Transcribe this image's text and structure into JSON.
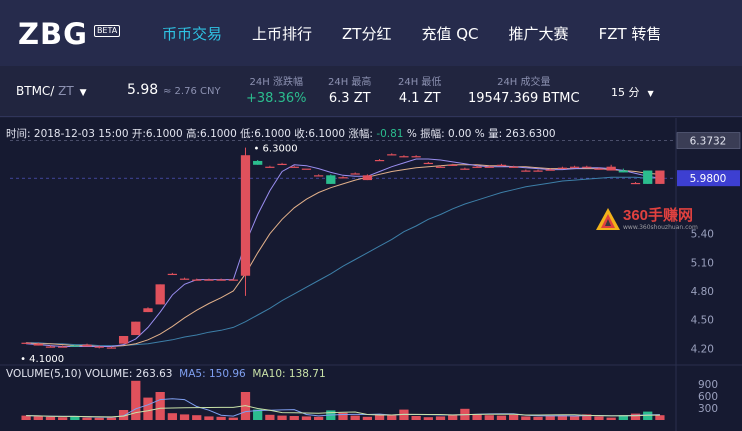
{
  "brand": {
    "logo": "ZBG",
    "badge": "BETA"
  },
  "nav": [
    {
      "label": "币币交易",
      "active": true
    },
    {
      "label": "上币排行",
      "active": false
    },
    {
      "label": "ZT分红",
      "active": false
    },
    {
      "label": "充值 QC",
      "active": false
    },
    {
      "label": "推广大赛",
      "active": false
    },
    {
      "label": "FZT 转售",
      "active": false
    }
  ],
  "ticker": {
    "base": "BTMC/",
    "quote": "ZT",
    "price": "5.98",
    "cny": "≈ 2.76 CNY",
    "stats": [
      {
        "label": "24H 涨跌幅",
        "value": "+38.36%",
        "positive": true
      },
      {
        "label": "24H 最高",
        "value": "6.3 ZT"
      },
      {
        "label": "24H 最低",
        "value": "4.1 ZT"
      },
      {
        "label": "24H 成交量",
        "value": "19547.369 BTMC"
      }
    ],
    "interval": "15 分"
  },
  "ohlc": {
    "time_label": "时间:",
    "time": "2018-12-03 15:00",
    "open_label": "开:",
    "open": "6.1000",
    "high_label": "高:",
    "high": "6.1000",
    "low_label": "低:",
    "low": "6.1000",
    "close_label": "收:",
    "close": "6.1000",
    "change_label": "涨幅:",
    "change": "-0.81",
    "change_unit": "%",
    "amp_label": "振幅:",
    "amp": "0.00 %",
    "vol_label": "量:",
    "vol": "263.6300"
  },
  "volume_info": {
    "title": "VOLUME(5,10)",
    "volume": "VOLUME: 263.63",
    "ma5": "MA5: 150.96",
    "ma10": "MA10: 138.71"
  },
  "watermark": {
    "text": "360手赚网",
    "url": "www.360shouzhuan.com"
  },
  "colors": {
    "up": "#2bbd8e",
    "down": "#e0515c",
    "accent": "#2fc4e4",
    "price_tag": "#3d3fd1"
  },
  "chart_data": {
    "type": "candlestick",
    "y_ticks": [
      "5.40",
      "5.10",
      "4.80",
      "4.50",
      "4.20"
    ],
    "volume_ticks": [
      "900",
      "600",
      "300"
    ],
    "current_price": "5.9800",
    "high_marker": "6.3732",
    "annotations": {
      "max": "6.3000",
      "min": "4.1000"
    },
    "ylim": [
      4.1,
      6.4
    ],
    "candles": [
      [
        4.26,
        4.25,
        4.26,
        4.25,
        "down"
      ],
      [
        4.25,
        4.23,
        4.26,
        4.23,
        "down"
      ],
      [
        4.22,
        4.22,
        4.23,
        4.21,
        "down"
      ],
      [
        4.22,
        4.22,
        4.23,
        4.22,
        "down"
      ],
      [
        4.22,
        4.23,
        4.24,
        4.22,
        "up"
      ],
      [
        4.24,
        4.22,
        4.25,
        4.22,
        "down"
      ],
      [
        4.22,
        4.21,
        4.23,
        4.2,
        "down"
      ],
      [
        4.21,
        4.21,
        4.22,
        4.2,
        "down"
      ],
      [
        4.25,
        4.33,
        4.33,
        4.25,
        "down"
      ],
      [
        4.34,
        4.48,
        4.48,
        4.34,
        "down"
      ],
      [
        4.58,
        4.62,
        4.63,
        4.58,
        "down"
      ],
      [
        4.66,
        4.87,
        4.87,
        4.66,
        "down"
      ],
      [
        4.98,
        4.98,
        4.99,
        4.97,
        "down"
      ],
      [
        4.93,
        4.93,
        4.94,
        4.92,
        "down"
      ],
      [
        4.92,
        4.92,
        4.93,
        4.91,
        "down"
      ],
      [
        4.92,
        4.92,
        4.93,
        4.91,
        "down"
      ],
      [
        4.92,
        4.92,
        4.93,
        4.91,
        "down"
      ],
      [
        4.92,
        4.92,
        4.93,
        4.91,
        "down"
      ],
      [
        4.96,
        6.22,
        6.3,
        4.75,
        "down"
      ],
      [
        6.12,
        6.16,
        6.17,
        6.12,
        "up"
      ],
      [
        6.1,
        6.1,
        6.11,
        6.1,
        "down"
      ],
      [
        6.13,
        6.13,
        6.14,
        6.13,
        "down"
      ],
      [
        6.1,
        6.1,
        6.11,
        6.1,
        "down"
      ],
      [
        6.08,
        6.08,
        6.08,
        6.08,
        "down"
      ],
      [
        6.01,
        6.01,
        6.02,
        6.01,
        "down"
      ],
      [
        6.01,
        5.92,
        6.02,
        5.92,
        "up"
      ],
      [
        5.99,
        5.99,
        6.0,
        5.98,
        "down"
      ],
      [
        6.03,
        6.03,
        6.04,
        6.02,
        "down"
      ],
      [
        6.01,
        5.96,
        6.02,
        5.96,
        "down"
      ],
      [
        6.17,
        6.17,
        6.18,
        6.16,
        "down"
      ],
      [
        6.23,
        6.23,
        6.24,
        6.22,
        "down"
      ],
      [
        6.21,
        6.21,
        6.22,
        6.2,
        "down"
      ],
      [
        6.21,
        6.21,
        6.22,
        6.2,
        "down"
      ],
      [
        6.14,
        6.14,
        6.15,
        6.13,
        "down"
      ],
      [
        6.1,
        6.1,
        6.11,
        6.1,
        "down"
      ],
      [
        6.12,
        6.12,
        6.13,
        6.11,
        "down"
      ],
      [
        6.08,
        6.08,
        6.09,
        6.07,
        "down"
      ],
      [
        6.1,
        6.1,
        6.11,
        6.09,
        "down"
      ],
      [
        6.1,
        6.1,
        6.11,
        6.09,
        "down"
      ],
      [
        6.12,
        6.12,
        6.13,
        6.11,
        "down"
      ],
      [
        6.1,
        6.1,
        6.11,
        6.09,
        "down"
      ],
      [
        6.06,
        6.06,
        6.07,
        6.05,
        "down"
      ],
      [
        6.06,
        6.06,
        6.07,
        6.05,
        "down"
      ],
      [
        6.07,
        6.07,
        6.08,
        6.06,
        "down"
      ],
      [
        6.09,
        6.09,
        6.1,
        6.08,
        "down"
      ],
      [
        6.1,
        6.1,
        6.11,
        6.09,
        "down"
      ],
      [
        6.1,
        6.1,
        6.11,
        6.09,
        "down"
      ],
      [
        6.08,
        6.08,
        6.09,
        6.07,
        "down"
      ],
      [
        6.1,
        6.06,
        6.12,
        6.06,
        "down"
      ],
      [
        6.06,
        6.04,
        6.08,
        6.04,
        "up"
      ],
      [
        5.93,
        5.93,
        5.94,
        5.92,
        "down"
      ],
      [
        6.06,
        5.92,
        6.06,
        5.92,
        "up"
      ],
      [
        6.06,
        5.92,
        6.06,
        5.92,
        "down"
      ]
    ],
    "ma_fast": [
      4.25,
      4.24,
      4.23,
      4.22,
      4.22,
      4.22,
      4.22,
      4.22,
      4.24,
      4.3,
      4.42,
      4.58,
      4.76,
      4.87,
      4.92,
      4.92,
      4.92,
      4.92,
      5.3,
      5.6,
      5.85,
      6.05,
      6.12,
      6.11,
      6.08,
      6.04,
      6.01,
      6.0,
      6.0,
      6.05,
      6.1,
      6.14,
      6.18,
      6.18,
      6.17,
      6.15,
      6.13,
      6.11,
      6.1,
      6.1,
      6.1,
      6.09,
      6.08,
      6.07,
      6.07,
      6.08,
      6.09,
      6.09,
      6.08,
      6.06,
      6.03,
      6.0,
      5.98
    ],
    "ma_mid": [
      4.26,
      4.25,
      4.25,
      4.24,
      4.23,
      4.23,
      4.22,
      4.22,
      4.23,
      4.25,
      4.29,
      4.35,
      4.43,
      4.52,
      4.6,
      4.67,
      4.73,
      4.8,
      4.98,
      5.2,
      5.4,
      5.55,
      5.67,
      5.76,
      5.83,
      5.88,
      5.92,
      5.96,
      5.99,
      6.02,
      6.05,
      6.07,
      6.09,
      6.1,
      6.11,
      6.12,
      6.12,
      6.12,
      6.11,
      6.11,
      6.1,
      6.1,
      6.09,
      6.08,
      6.08,
      6.08,
      6.08,
      6.08,
      6.07,
      6.06,
      6.05,
      6.03,
      6.02
    ],
    "ma_slow": [
      4.26,
      4.26,
      4.25,
      4.25,
      4.24,
      4.24,
      4.23,
      4.23,
      4.23,
      4.24,
      4.25,
      4.27,
      4.29,
      4.32,
      4.34,
      4.37,
      4.39,
      4.42,
      4.48,
      4.55,
      4.62,
      4.7,
      4.77,
      4.84,
      4.91,
      4.98,
      5.06,
      5.13,
      5.2,
      5.27,
      5.34,
      5.42,
      5.48,
      5.55,
      5.6,
      5.66,
      5.71,
      5.75,
      5.79,
      5.83,
      5.86,
      5.89,
      5.91,
      5.93,
      5.95,
      5.96,
      5.97,
      5.98,
      5.99,
      5.99,
      5.99,
      5.98,
      5.98
    ],
    "volumes": [
      110,
      95,
      80,
      70,
      100,
      60,
      55,
      60,
      250,
      980,
      560,
      700,
      170,
      140,
      120,
      90,
      80,
      60,
      700,
      260,
      130,
      110,
      100,
      90,
      80,
      240,
      180,
      110,
      80,
      130,
      120,
      260,
      100,
      70,
      90,
      120,
      280,
      150,
      120,
      110,
      130,
      90,
      80,
      100,
      120,
      110,
      140,
      90,
      60,
      120,
      160,
      210,
      120
    ]
  }
}
